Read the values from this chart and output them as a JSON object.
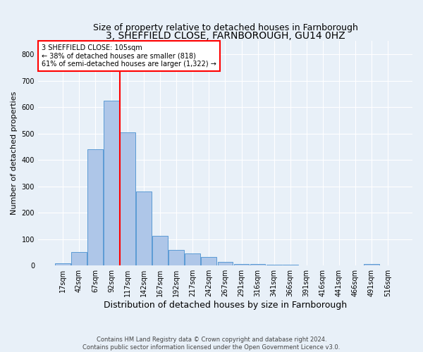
{
  "title": "3, SHEFFIELD CLOSE, FARNBOROUGH, GU14 0HZ",
  "subtitle": "Size of property relative to detached houses in Farnborough",
  "xlabel": "Distribution of detached houses by size in Farnborough",
  "ylabel": "Number of detached properties",
  "footer_line1": "Contains HM Land Registry data © Crown copyright and database right 2024.",
  "footer_line2": "Contains public sector information licensed under the Open Government Licence v3.0.",
  "bar_labels": [
    "17sqm",
    "42sqm",
    "67sqm",
    "92sqm",
    "117sqm",
    "142sqm",
    "167sqm",
    "192sqm",
    "217sqm",
    "242sqm",
    "267sqm",
    "291sqm",
    "316sqm",
    "341sqm",
    "366sqm",
    "391sqm",
    "416sqm",
    "441sqm",
    "466sqm",
    "491sqm",
    "516sqm"
  ],
  "bar_values": [
    8,
    50,
    440,
    625,
    505,
    280,
    113,
    58,
    45,
    33,
    15,
    7,
    5,
    2,
    2,
    0,
    0,
    0,
    0,
    6,
    0
  ],
  "bar_color": "#aec6e8",
  "bar_edge_color": "#5b9bd5",
  "vline_x": 3.52,
  "vline_color": "red",
  "annotation_text": "3 SHEFFIELD CLOSE: 105sqm\n← 38% of detached houses are smaller (818)\n61% of semi-detached houses are larger (1,322) →",
  "annotation_box_color": "white",
  "annotation_box_edge_color": "red",
  "ylim": [
    0,
    850
  ],
  "yticks": [
    0,
    100,
    200,
    300,
    400,
    500,
    600,
    700,
    800
  ],
  "background_color": "#e8f0f8",
  "plot_background_color": "#e8f0f8",
  "title_fontsize": 10,
  "subtitle_fontsize": 9,
  "tick_fontsize": 7,
  "ylabel_fontsize": 8,
  "xlabel_fontsize": 9,
  "annotation_fontsize": 7,
  "footer_fontsize": 6
}
